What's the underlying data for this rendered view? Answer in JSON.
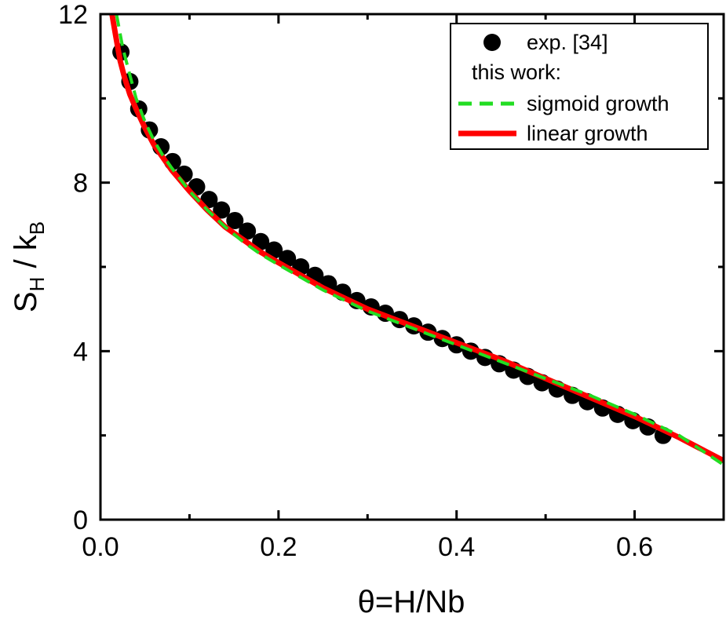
{
  "chart_data": {
    "type": "line",
    "xlabel": "θ=H/Nb",
    "ylabel_main": "S",
    "ylabel_sub": "H",
    "ylabel_mid": " / k",
    "ylabel_sub2": "B",
    "xlim": [
      0.0,
      0.7
    ],
    "ylim": [
      0,
      12
    ],
    "xticks": [
      0.0,
      0.2,
      0.4,
      0.6
    ],
    "xtick_labels": [
      "0.0",
      "0.2",
      "0.4",
      "0.6"
    ],
    "yticks": [
      0,
      4,
      8,
      12
    ],
    "ytick_labels": [
      "0",
      "4",
      "8",
      "12"
    ],
    "legend": {
      "placement": "top-right",
      "subtitle": "this work:",
      "entries": [
        {
          "key": "exp",
          "label": "exp. [34]",
          "color": "#000000",
          "style": "marker"
        },
        {
          "key": "sigmoid",
          "label": "sigmoid growth",
          "color": "#22dd22",
          "style": "dashed"
        },
        {
          "key": "linear",
          "label": "linear growth",
          "color": "#ff0000",
          "style": "solid"
        }
      ]
    },
    "series": [
      {
        "name": "exp. [34]",
        "kind": "scatter",
        "color": "#000000",
        "x": [
          0.023,
          0.033,
          0.043,
          0.055,
          0.068,
          0.081,
          0.094,
          0.108,
          0.122,
          0.136,
          0.151,
          0.165,
          0.18,
          0.195,
          0.21,
          0.225,
          0.241,
          0.256,
          0.272,
          0.288,
          0.304,
          0.32,
          0.336,
          0.352,
          0.368,
          0.384,
          0.4,
          0.416,
          0.432,
          0.448,
          0.464,
          0.48,
          0.496,
          0.513,
          0.53,
          0.547,
          0.564,
          0.581,
          0.598,
          0.615,
          0.632
        ],
        "y": [
          11.1,
          10.4,
          9.75,
          9.25,
          8.85,
          8.5,
          8.2,
          7.9,
          7.6,
          7.35,
          7.1,
          6.85,
          6.6,
          6.4,
          6.2,
          6.0,
          5.8,
          5.6,
          5.4,
          5.2,
          5.05,
          4.9,
          4.75,
          4.6,
          4.45,
          4.3,
          4.15,
          4.0,
          3.85,
          3.7,
          3.55,
          3.4,
          3.25,
          3.1,
          2.95,
          2.8,
          2.65,
          2.5,
          2.35,
          2.2,
          2.0
        ]
      },
      {
        "name": "sigmoid growth",
        "kind": "line",
        "color": "#22dd22",
        "x": [
          0.018,
          0.025,
          0.03,
          0.035,
          0.04,
          0.05,
          0.06,
          0.07,
          0.08,
          0.1,
          0.12,
          0.14,
          0.16,
          0.18,
          0.2,
          0.25,
          0.3,
          0.35,
          0.4,
          0.45,
          0.5,
          0.55,
          0.6,
          0.65,
          0.7
        ],
        "y": [
          12.0,
          11.2,
          10.8,
          10.4,
          10.0,
          9.45,
          9.0,
          8.65,
          8.35,
          7.8,
          7.35,
          6.95,
          6.6,
          6.3,
          6.05,
          5.45,
          4.95,
          4.55,
          4.15,
          3.75,
          3.35,
          2.95,
          2.5,
          2.0,
          1.3
        ]
      },
      {
        "name": "linear growth",
        "kind": "line",
        "color": "#ff0000",
        "x": [
          0.013,
          0.017,
          0.022,
          0.027,
          0.033,
          0.04,
          0.05,
          0.06,
          0.07,
          0.08,
          0.1,
          0.12,
          0.14,
          0.16,
          0.18,
          0.2,
          0.25,
          0.3,
          0.35,
          0.4,
          0.45,
          0.5,
          0.55,
          0.6,
          0.65,
          0.7
        ],
        "y": [
          12.0,
          11.5,
          10.9,
          10.5,
          10.1,
          9.75,
          9.3,
          8.9,
          8.6,
          8.3,
          7.8,
          7.35,
          6.95,
          6.65,
          6.35,
          6.1,
          5.5,
          5.0,
          4.6,
          4.2,
          3.8,
          3.35,
          2.9,
          2.45,
          1.95,
          1.4
        ]
      }
    ]
  }
}
